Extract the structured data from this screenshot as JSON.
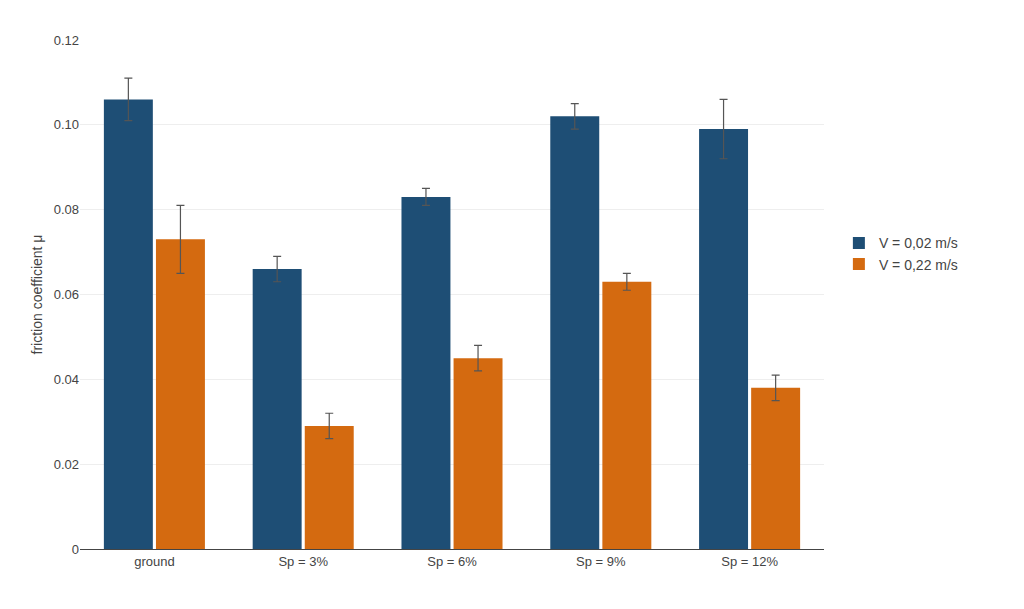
{
  "chart_data": {
    "type": "bar",
    "categories": [
      "ground",
      "Sp = 3%",
      "Sp = 6%",
      "Sp = 9%",
      "Sp = 12%"
    ],
    "series": [
      {
        "name": "V = 0,02 m/s",
        "color": "#1e4e75",
        "values": [
          0.106,
          0.066,
          0.083,
          0.102,
          0.099
        ],
        "errors": [
          0.005,
          0.003,
          0.002,
          0.003,
          0.007
        ]
      },
      {
        "name": "V = 0,22 m/s",
        "color": "#d46a10",
        "values": [
          0.073,
          0.029,
          0.045,
          0.063,
          0.038
        ],
        "errors": [
          0.008,
          0.003,
          0.003,
          0.002,
          0.003
        ]
      }
    ],
    "ylabel": "friction coefficient μ",
    "ylim": [
      0,
      0.12
    ],
    "yticks": [
      0,
      0.02,
      0.04,
      0.06,
      0.08,
      {
        "value": 0.1,
        "label": "0.10"
      },
      0.12
    ],
    "grid": true,
    "legend": "right"
  }
}
